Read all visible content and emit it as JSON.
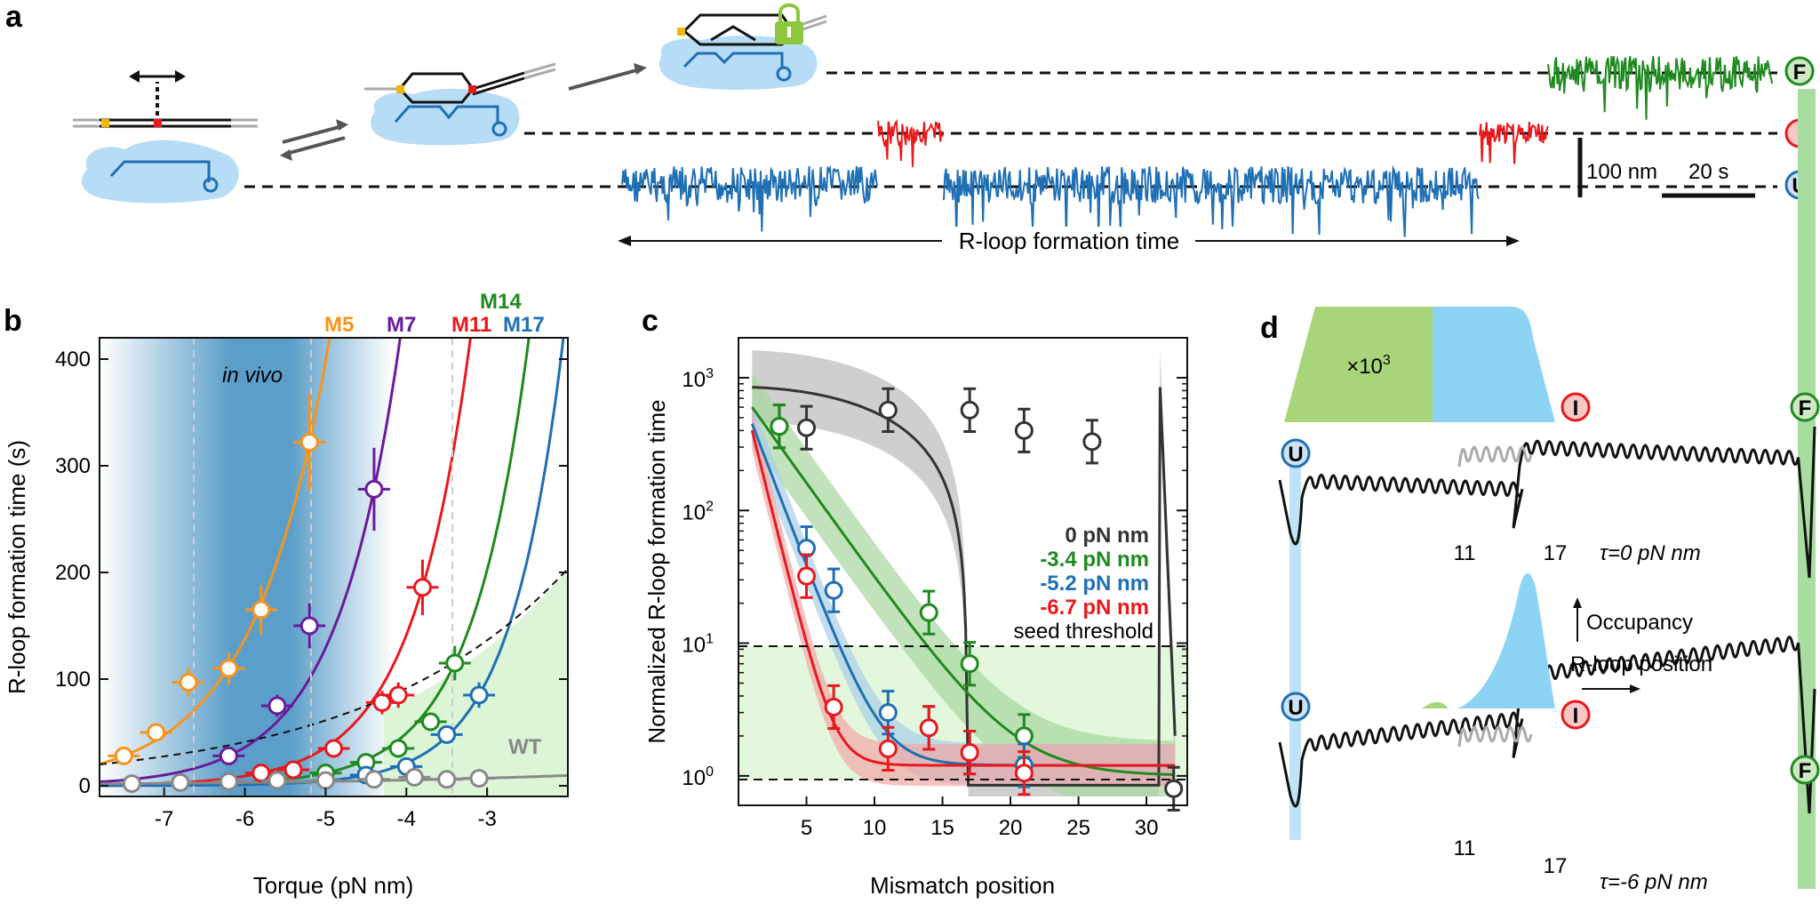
{
  "panel_labels": {
    "a": "a",
    "b": "b",
    "c": "c",
    "d": "d"
  },
  "panel_a": {
    "states": [
      "U",
      "I",
      "F"
    ],
    "scale_bar_length": "100 nm",
    "scale_bar_time": "20 s",
    "formation_time_label": "R-loop formation time",
    "colors": {
      "U": "#1f6fb4",
      "I": "#e8191c",
      "F": "#1f8a1f"
    }
  },
  "panel_b": {
    "xlabel": "Torque (pN nm)",
    "ylabel": "R-loop formation time (s)",
    "xticks": [
      "-7",
      "-6",
      "-5",
      "-4",
      "-3"
    ],
    "yticks": [
      "0",
      "100",
      "200",
      "300",
      "400"
    ],
    "in_vivo_label": "in vivo",
    "series_labels": {
      "M5": "M5",
      "M7": "M7",
      "M11": "M11",
      "M14": "M14",
      "M17": "M17",
      "WT": "WT"
    }
  },
  "panel_c": {
    "xlabel": "Mismatch position",
    "ylabel": "Normalized R-loop formation time",
    "xticks": [
      "5",
      "10",
      "15",
      "20",
      "25",
      "30"
    ],
    "yticks_base": "10",
    "yticks_exp": [
      "0",
      "1",
      "2",
      "3"
    ],
    "threshold_label": "seed threshold",
    "legend": [
      "0 pN nm",
      "-3.4 pN nm",
      "-5.2 pN nm",
      "-6.7 pN nm"
    ]
  },
  "panel_d": {
    "factor_label": "×10",
    "factor_exp": "3",
    "positions": [
      "11",
      "17"
    ],
    "tau_top": "τ=0 pN nm",
    "tau_bottom": "τ=-6 pN nm",
    "occupancy_label": "Occupancy",
    "rloop_position_label": "R-loop position",
    "states": [
      "U",
      "I",
      "F"
    ]
  },
  "chart_data": [
    {
      "type": "scatter",
      "title": "b",
      "xlabel": "Torque (pN nm)",
      "ylabel": "R-loop formation time (s)",
      "xlim": [
        -7.8,
        -2.0
      ],
      "ylim": [
        -10,
        420
      ],
      "series": [
        {
          "name": "M5",
          "color": "#f7941d",
          "x": [
            -7.5,
            -7.1,
            -6.7,
            -6.2,
            -5.8,
            -5.2
          ],
          "y": [
            28,
            50,
            97,
            110,
            165,
            322
          ]
        },
        {
          "name": "M7",
          "color": "#6a1b9a",
          "x": [
            -6.2,
            -5.6,
            -5.2,
            -4.4
          ],
          "y": [
            28,
            75,
            150,
            278
          ]
        },
        {
          "name": "M11",
          "color": "#e8191c",
          "x": [
            -5.8,
            -5.4,
            -4.9,
            -4.3,
            -4.1,
            -3.8
          ],
          "y": [
            12,
            15,
            35,
            78,
            85,
            186
          ]
        },
        {
          "name": "M14",
          "color": "#1f8a1f",
          "x": [
            -5.0,
            -4.5,
            -4.1,
            -3.7,
            -3.4
          ],
          "y": [
            12,
            22,
            35,
            60,
            115
          ]
        },
        {
          "name": "M17",
          "color": "#1f6fb4",
          "x": [
            -4.5,
            -4.0,
            -3.5,
            -3.1
          ],
          "y": [
            10,
            18,
            48,
            85
          ]
        },
        {
          "name": "WT",
          "color": "#888888",
          "x": [
            -7.4,
            -6.8,
            -6.2,
            -5.6,
            -5.0,
            -4.4,
            -3.9,
            -3.5,
            -3.1
          ],
          "y": [
            2,
            3,
            4,
            5,
            5,
            6,
            8,
            6,
            7
          ]
        }
      ]
    },
    {
      "type": "scatter",
      "title": "c",
      "xlabel": "Mismatch position",
      "ylabel": "Normalized R-loop formation time",
      "xlim": [
        0,
        33
      ],
      "ylim": [
        0.6,
        2000
      ],
      "yscale": "log",
      "series": [
        {
          "name": "0 pN nm",
          "color": "#333333",
          "x": [
            3,
            5,
            11,
            17,
            21,
            26,
            32
          ],
          "y": [
            430,
            420,
            570,
            570,
            400,
            330,
            0.8
          ]
        },
        {
          "name": "-3.4 pN nm",
          "color": "#1f8a1f",
          "x": [
            3,
            14,
            17,
            21
          ],
          "y": [
            430,
            17,
            7,
            2
          ]
        },
        {
          "name": "-5.2 pN nm",
          "color": "#1f6fb4",
          "x": [
            5,
            7,
            11,
            14,
            17,
            21
          ],
          "y": [
            52,
            25,
            3,
            2.3,
            1.5,
            1.2
          ]
        },
        {
          "name": "-6.7 pN nm",
          "color": "#e8191c",
          "x": [
            5,
            7,
            11,
            14,
            17,
            21
          ],
          "y": [
            32,
            3.3,
            1.6,
            2.3,
            1.5,
            1.05
          ]
        }
      ]
    }
  ]
}
